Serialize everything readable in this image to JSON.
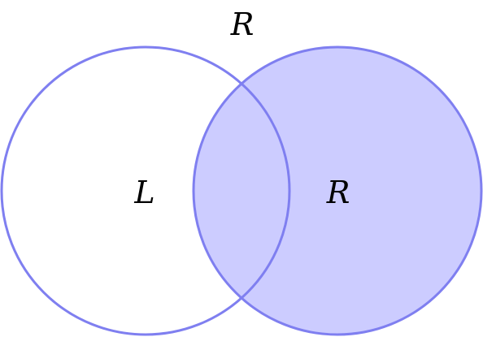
{
  "diagram": {
    "type": "venn",
    "title_label": "R",
    "sets": [
      {
        "id": "left",
        "label": "L",
        "shaded": false
      },
      {
        "id": "right",
        "label": "R",
        "shaded": true
      }
    ],
    "highlighted_region": "right set",
    "colors": {
      "stroke": "#7f7ff0",
      "fill": "#ccccff",
      "background": "#ffffff"
    }
  }
}
